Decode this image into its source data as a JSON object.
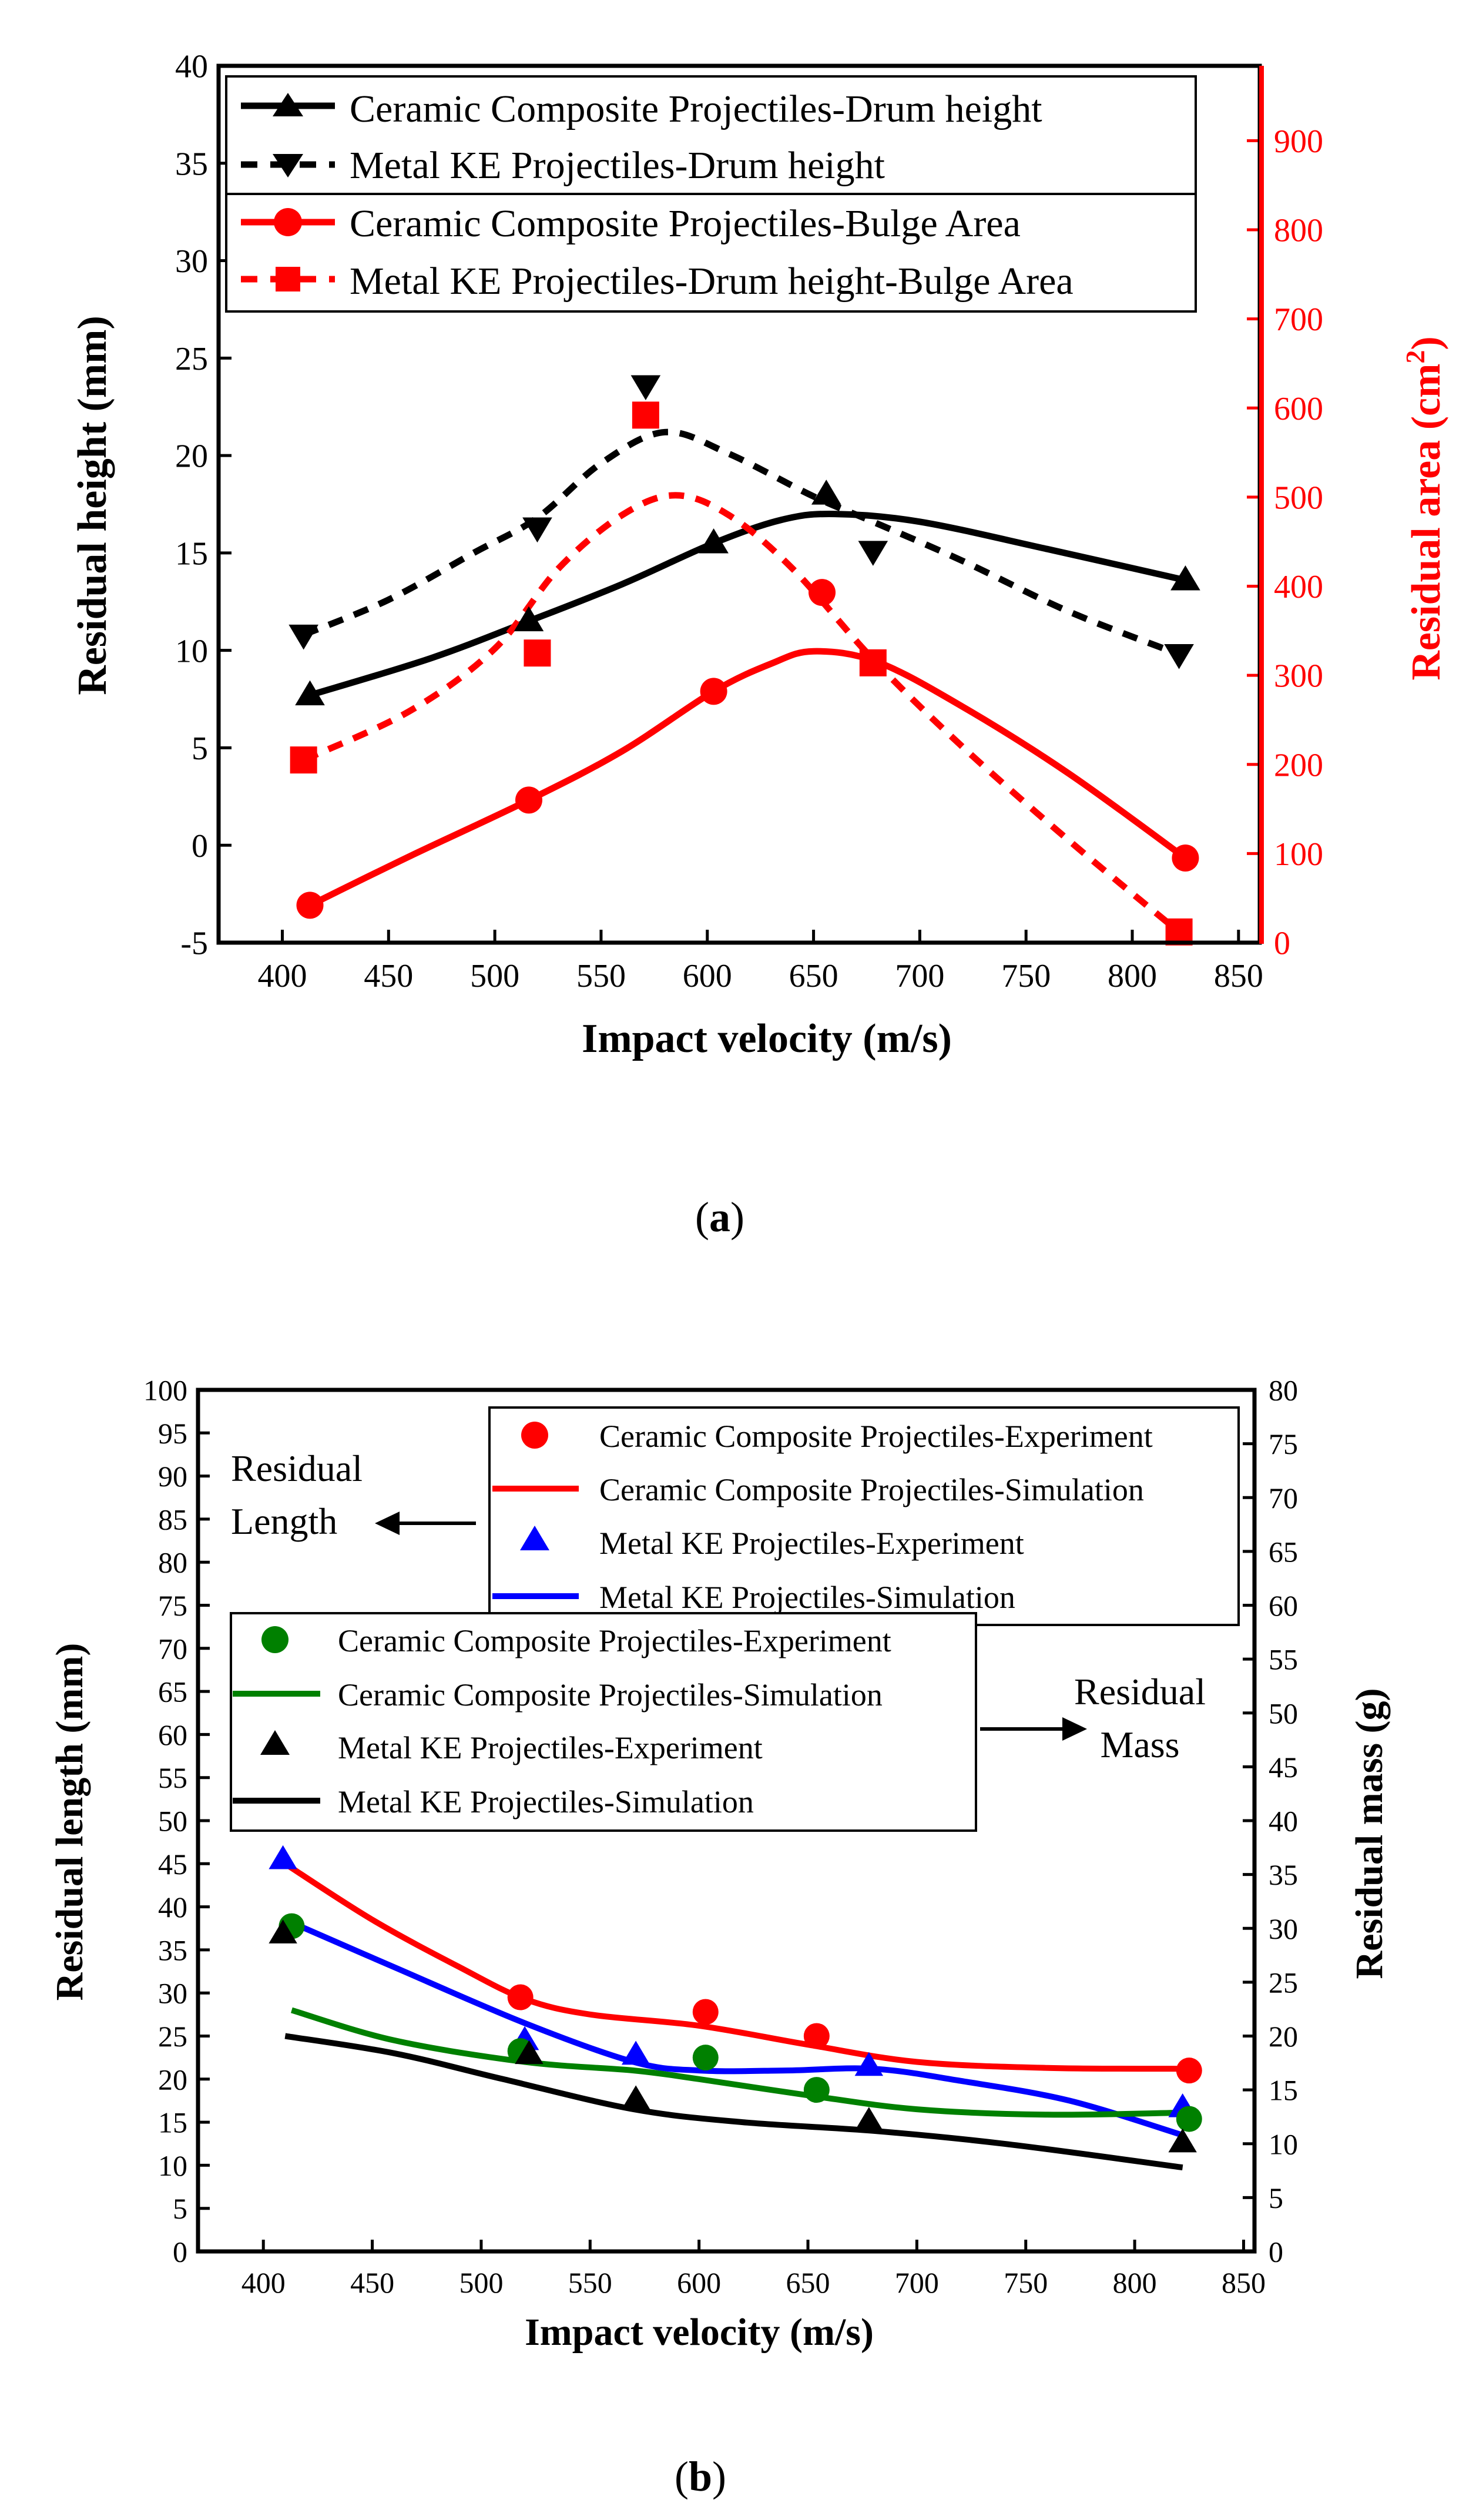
{
  "chart_data": [
    {
      "type": "line",
      "panel_label": "(a)",
      "panel_label_letter": "a",
      "xlabel": "Impact velocity (m/s)",
      "ylabel": "Residual height (mm)",
      "y2label": "Residual area (cm",
      "y2label_sup": "2",
      "y2label_close": ")",
      "xlim": [
        370,
        860
      ],
      "ylim": [
        -5,
        40
      ],
      "y2lim": [
        0,
        984
      ],
      "xticks": [
        400,
        450,
        500,
        550,
        600,
        650,
        700,
        750,
        800,
        850
      ],
      "yticks": [
        -5,
        0,
        5,
        10,
        15,
        20,
        25,
        30,
        35,
        40
      ],
      "y2ticks": [
        0,
        100,
        200,
        300,
        400,
        500,
        600,
        700,
        800,
        900
      ],
      "grid": false,
      "legend_position": "top",
      "series": [
        {
          "name": "Ceramic Composite Projectiles-Drum height",
          "axis": "left",
          "color": "#000000",
          "marker": "triangle-up",
          "dash": "solid",
          "points": [
            [
              413,
              7.7
            ],
            [
              516,
              11.5
            ],
            [
              603,
              15.5
            ],
            [
              656,
              18.0
            ],
            [
              825,
              13.6
            ]
          ],
          "curve": [
            [
              413,
              7.7
            ],
            [
              470,
              9.6
            ],
            [
              516,
              11.5
            ],
            [
              560,
              13.4
            ],
            [
              603,
              15.5
            ],
            [
              635,
              16.7
            ],
            [
              660,
              17.0
            ],
            [
              700,
              16.6
            ],
            [
              760,
              15.2
            ],
            [
              825,
              13.6
            ]
          ]
        },
        {
          "name": "Metal KE Projectiles-Drum height",
          "axis": "left",
          "color": "#000000",
          "marker": "triangle-down",
          "dash": "dashed",
          "points": [
            [
              410,
              10.8
            ],
            [
              520,
              16.3
            ],
            [
              571,
              23.6
            ],
            [
              678,
              15.1
            ],
            [
              822,
              9.8
            ]
          ],
          "curve": [
            [
              410,
              10.8
            ],
            [
              450,
              12.6
            ],
            [
              490,
              15.0
            ],
            [
              520,
              16.8
            ],
            [
              550,
              19.6
            ],
            [
              580,
              21.2
            ],
            [
              610,
              20.1
            ],
            [
              650,
              17.9
            ],
            [
              678,
              16.6
            ],
            [
              720,
              14.6
            ],
            [
              770,
              12.0
            ],
            [
              822,
              9.8
            ]
          ]
        },
        {
          "name": "Ceramic Composite Projectiles-Bulge Area",
          "axis": "right",
          "color": "#ff0000",
          "marker": "circle",
          "dash": "solid",
          "points": [
            [
              413,
              42
            ],
            [
              516,
              160
            ],
            [
              603,
              282
            ],
            [
              654,
              393
            ],
            [
              825,
              95
            ]
          ],
          "curve": [
            [
              413,
              42
            ],
            [
              460,
              97
            ],
            [
              516,
              160
            ],
            [
              560,
              215
            ],
            [
              603,
              282
            ],
            [
              630,
              313
            ],
            [
              650,
              327
            ],
            [
              680,
              315
            ],
            [
              720,
              265
            ],
            [
              770,
              190
            ],
            [
              825,
              95
            ]
          ]
        },
        {
          "name": "Metal KE Projectiles-Drum height-Bulge Area",
          "axis": "right",
          "color": "#ff0000",
          "marker": "square",
          "dash": "dashed",
          "points": [
            [
              410,
              205
            ],
            [
              520,
              325
            ],
            [
              571,
              592
            ],
            [
              678,
              314
            ],
            [
              822,
              12
            ]
          ],
          "curve": [
            [
              410,
              205
            ],
            [
              460,
              260
            ],
            [
              500,
              330
            ],
            [
              530,
              420
            ],
            [
              560,
              480
            ],
            [
              585,
              502
            ],
            [
              610,
              480
            ],
            [
              640,
              420
            ],
            [
              678,
              318
            ],
            [
              720,
              220
            ],
            [
              770,
              115
            ],
            [
              822,
              12
            ]
          ]
        }
      ]
    },
    {
      "type": "line",
      "panel_label": "(b)",
      "panel_label_letter": "b",
      "xlabel": "Impact velocity (m/s)",
      "ylabel": "Residual length (mm)",
      "y2label": "Residual mass (g)",
      "xlim": [
        370,
        855
      ],
      "ylim": [
        0,
        100
      ],
      "y2lim": [
        0,
        80
      ],
      "xticks": [
        400,
        450,
        500,
        550,
        600,
        650,
        700,
        750,
        800,
        850
      ],
      "yticks": [
        0,
        5,
        10,
        15,
        20,
        25,
        30,
        35,
        40,
        45,
        50,
        55,
        60,
        65,
        70,
        75,
        80,
        85,
        90,
        95,
        100
      ],
      "y2ticks": [
        0,
        5,
        10,
        15,
        20,
        25,
        30,
        35,
        40,
        45,
        50,
        55,
        60,
        65,
        70,
        75,
        80
      ],
      "grid": false,
      "annotations": {
        "residual_length_line1": "Residual",
        "residual_length_line2": "Length",
        "residual_mass_line1": "Residual",
        "residual_mass_line2": "Mass"
      },
      "series": [
        {
          "name": "Ceramic Composite Projectiles-Experiment",
          "axis": "left",
          "color": "#ff0000",
          "marker": "circle",
          "points": [
            [
              518,
              29.5
            ],
            [
              603,
              27.8
            ],
            [
              654,
              25.0
            ],
            [
              825,
              21.0
            ]
          ]
        },
        {
          "name": "Ceramic Composite Projectiles-Simulation",
          "axis": "left",
          "color": "#ff0000",
          "marker": "none",
          "curve": [
            [
              410,
              45.0
            ],
            [
              450,
              38.5
            ],
            [
              490,
              33.0
            ],
            [
              520,
              29.3
            ],
            [
              550,
              27.5
            ],
            [
              600,
              26.2
            ],
            [
              650,
              24.0
            ],
            [
              700,
              22.0
            ],
            [
              760,
              21.3
            ],
            [
              825,
              21.2
            ]
          ]
        },
        {
          "name": "Metal KE Projectiles-Experiment",
          "axis": "left",
          "color": "#0000ff",
          "marker": "triangle-up",
          "points": [
            [
              409,
              45.5
            ],
            [
              520,
              24.5
            ],
            [
              571,
              22.8
            ],
            [
              678,
              21.5
            ],
            [
              822,
              16.7
            ]
          ]
        },
        {
          "name": "Metal KE Projectiles-Simulation",
          "axis": "left",
          "color": "#0000ff",
          "marker": "none",
          "curve": [
            [
              410,
              38.5
            ],
            [
              460,
              33.0
            ],
            [
              520,
              26.5
            ],
            [
              570,
              22.0
            ],
            [
              600,
              21.0
            ],
            [
              640,
              21.0
            ],
            [
              680,
              21.2
            ],
            [
              720,
              19.8
            ],
            [
              770,
              17.5
            ],
            [
              822,
              13.5
            ]
          ]
        },
        {
          "name": "Ceramic Composite Projectiles-Experiment",
          "axis": "right",
          "color": "#008000",
          "marker": "circle",
          "points": [
            [
              413,
              30.2
            ],
            [
              518,
              18.6
            ],
            [
              603,
              18.0
            ],
            [
              654,
              15.0
            ],
            [
              825,
              12.3
            ]
          ]
        },
        {
          "name": "Ceramic Composite Projectiles-Simulation",
          "axis": "right",
          "color": "#008000",
          "marker": "none",
          "curve": [
            [
              413,
              22.4
            ],
            [
              460,
              19.6
            ],
            [
              520,
              17.6
            ],
            [
              570,
              16.8
            ],
            [
              600,
              16.0
            ],
            [
              650,
              14.5
            ],
            [
              700,
              13.2
            ],
            [
              760,
              12.7
            ],
            [
              825,
              12.9
            ]
          ]
        },
        {
          "name": "Metal KE Projectiles-Experiment",
          "axis": "right",
          "color": "#000000",
          "marker": "triangle-up",
          "points": [
            [
              409,
              29.5
            ],
            [
              522,
              18.3
            ],
            [
              571,
              14.1
            ],
            [
              678,
              12.1
            ],
            [
              822,
              10.1
            ]
          ]
        },
        {
          "name": "Metal KE Projectiles-Simulation",
          "axis": "right",
          "color": "#000000",
          "marker": "none",
          "curve": [
            [
              410,
              20.0
            ],
            [
              460,
              18.4
            ],
            [
              510,
              16.0
            ],
            [
              570,
              13.2
            ],
            [
              620,
              12.0
            ],
            [
              680,
              11.2
            ],
            [
              740,
              10.0
            ],
            [
              822,
              7.8
            ]
          ]
        }
      ]
    }
  ]
}
